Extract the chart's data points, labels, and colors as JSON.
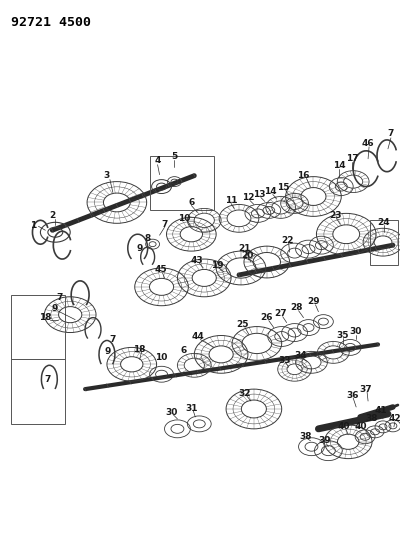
{
  "title": "92721 4500",
  "bg_color": "#ffffff",
  "line_color": "#2a2a2a",
  "title_fontsize": 9.5,
  "label_fontsize": 6.5,
  "fig_width": 4.02,
  "fig_height": 5.33,
  "dpi": 100
}
